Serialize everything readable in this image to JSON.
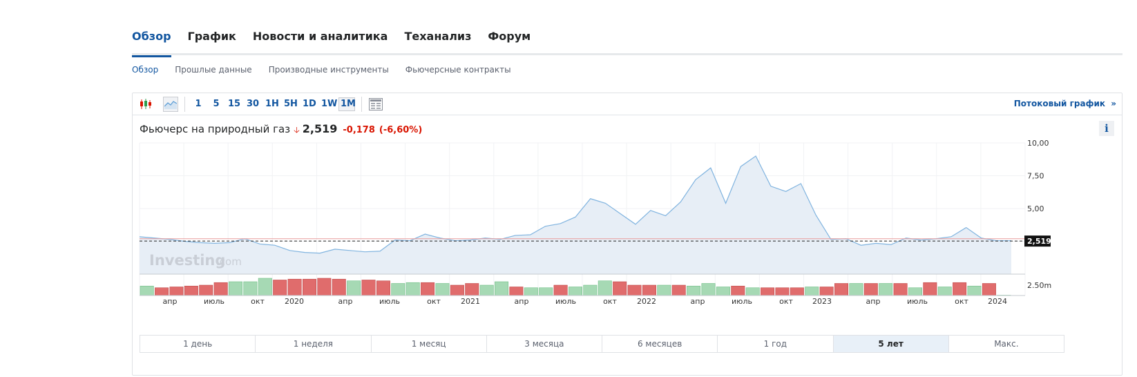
{
  "main_tabs": [
    {
      "label": "Обзор",
      "active": true
    },
    {
      "label": "График",
      "active": false
    },
    {
      "label": "Новости и аналитика",
      "active": false
    },
    {
      "label": "Теханализ",
      "active": false
    },
    {
      "label": "Форум",
      "active": false
    }
  ],
  "sub_tabs": [
    {
      "label": "Обзор",
      "active": true
    },
    {
      "label": "Прошлые данные",
      "active": false
    },
    {
      "label": "Производные инструменты",
      "active": false
    },
    {
      "label": "Фьючерсные контракты",
      "active": false
    }
  ],
  "toolbar": {
    "chart_type_icons": [
      "candlestick-icon",
      "area-chart-icon"
    ],
    "intervals": [
      "1",
      "5",
      "15",
      "30",
      "1H",
      "5H",
      "1D",
      "1W",
      "1M"
    ],
    "selected_interval": "1M",
    "table_icon": "table-icon",
    "streaming_link": "Потоковый график",
    "streaming_arrow": "»"
  },
  "instrument": {
    "name": "Фьючерс на природный газ",
    "direction_icon": "arrow-down-icon",
    "price": "2,519",
    "change": "-0,178",
    "change_pct": "(-6,60%)",
    "info_label": "i"
  },
  "watermark": {
    "main": "Investing",
    "suffix": ".com"
  },
  "chart_data": {
    "type": "area",
    "y_ticks": [
      "10,00",
      "7,50",
      "5,00"
    ],
    "ylim": [
      0,
      10
    ],
    "current_value": 2.519,
    "current_label": "2,519",
    "reference_line": 2.7,
    "volume_label": "2.50m",
    "x_tick_labels": [
      "апр",
      "июль",
      "окт",
      "2020",
      "апр",
      "июль",
      "окт",
      "2021",
      "апр",
      "июль",
      "окт",
      "2022",
      "апр",
      "июль",
      "окт",
      "2023",
      "апр",
      "июль",
      "окт",
      "2024"
    ],
    "values": [
      2.85,
      2.75,
      2.65,
      2.5,
      2.4,
      2.35,
      2.4,
      2.7,
      2.3,
      2.2,
      1.8,
      1.65,
      1.6,
      1.9,
      1.8,
      1.7,
      1.75,
      2.6,
      2.55,
      3.05,
      2.75,
      2.55,
      2.6,
      2.75,
      2.65,
      2.95,
      3.0,
      3.65,
      3.85,
      4.35,
      5.75,
      5.4,
      4.6,
      3.8,
      4.85,
      4.45,
      5.5,
      7.2,
      8.1,
      5.4,
      8.2,
      9.0,
      6.7,
      6.3,
      6.9,
      4.5,
      2.65,
      2.7,
      2.2,
      2.35,
      2.25,
      2.75,
      2.6,
      2.7,
      2.85,
      3.55,
      2.75,
      2.55,
      2.55
    ],
    "volumes": [
      0.55,
      0.45,
      0.5,
      0.55,
      0.6,
      0.75,
      0.8,
      0.8,
      1.0,
      0.9,
      0.95,
      0.95,
      1.0,
      0.95,
      0.85,
      0.9,
      0.85,
      0.7,
      0.75,
      0.75,
      0.7,
      0.6,
      0.7,
      0.6,
      0.8,
      0.5,
      0.45,
      0.45,
      0.6,
      0.5,
      0.6,
      0.85,
      0.8,
      0.6,
      0.6,
      0.6,
      0.6,
      0.55,
      0.7,
      0.5,
      0.55,
      0.45,
      0.45,
      0.45,
      0.45,
      0.5,
      0.5,
      0.7,
      0.7,
      0.7,
      0.7,
      0.7,
      0.45,
      0.75,
      0.5,
      0.75,
      0.55,
      0.7,
      0.02
    ],
    "volume_up": [
      true,
      false,
      false,
      false,
      false,
      false,
      true,
      true,
      true,
      false,
      false,
      false,
      false,
      false,
      true,
      false,
      false,
      true,
      true,
      false,
      true,
      false,
      false,
      true,
      true,
      false,
      true,
      true,
      false,
      true,
      true,
      true,
      false,
      false,
      false,
      true,
      false,
      true,
      true,
      true,
      false,
      true,
      false,
      false,
      false,
      true,
      false,
      false,
      true,
      false,
      true,
      false,
      true,
      false,
      true,
      false,
      true,
      false,
      true
    ]
  },
  "period_buttons": [
    {
      "label": "1 день",
      "active": false
    },
    {
      "label": "1 неделя",
      "active": false
    },
    {
      "label": "1 месяц",
      "active": false
    },
    {
      "label": "3 месяца",
      "active": false
    },
    {
      "label": "6 месяцев",
      "active": false
    },
    {
      "label": "1 год",
      "active": false
    },
    {
      "label": "5 лет",
      "active": true
    },
    {
      "label": "Макс.",
      "active": false
    }
  ],
  "colors": {
    "accent": "#1256a0",
    "down": "#d91400",
    "line": "#7fb3df",
    "area": "#e7eef6",
    "vol_up": "#a6d9b4",
    "vol_down": "#e06c6c",
    "ref_line": "#e89b9b"
  }
}
